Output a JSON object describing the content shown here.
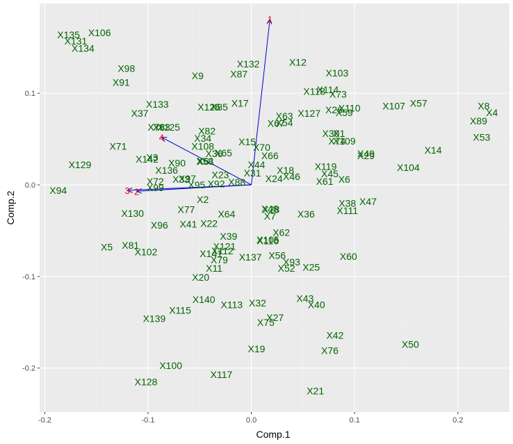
{
  "colors": {
    "panel": "#ebebeb",
    "grid_major": "#ffffff",
    "grid_minor": "#f4f4f4",
    "points": "#006400",
    "arrows": "#0000cd",
    "arrow_labels": "#ff0000",
    "tick_text": "#4d4d4d",
    "tick_mark": "#333333"
  },
  "chart_data": {
    "type": "scatter",
    "xlabel": "Comp.1",
    "ylabel": "Comp.2",
    "xlim": [
      -0.205,
      0.25
    ],
    "ylim": [
      -0.248,
      0.198
    ],
    "x_ticks": [
      {
        "value": -0.2,
        "label": "-0.2"
      },
      {
        "value": -0.1,
        "label": "-0.1"
      },
      {
        "value": 0.0,
        "label": "0.0"
      },
      {
        "value": 0.1,
        "label": "0.1"
      },
      {
        "value": 0.2,
        "label": "0.2"
      }
    ],
    "y_ticks": [
      {
        "value": 0.1,
        "label": "0.1"
      },
      {
        "value": 0.0,
        "label": "0.0"
      },
      {
        "value": -0.1,
        "label": "-0.1"
      },
      {
        "value": -0.2,
        "label": "-0.2"
      }
    ],
    "grid": true,
    "points": [
      {
        "label": "X135",
        "x": -0.177,
        "y": 0.164
      },
      {
        "label": "X106",
        "x": -0.147,
        "y": 0.166
      },
      {
        "label": "X131",
        "x": -0.17,
        "y": 0.157
      },
      {
        "label": "X134",
        "x": -0.163,
        "y": 0.149
      },
      {
        "label": "X98",
        "x": -0.121,
        "y": 0.127
      },
      {
        "label": "X91",
        "x": -0.126,
        "y": 0.112
      },
      {
        "label": "X9",
        "x": -0.052,
        "y": 0.119
      },
      {
        "label": "X87",
        "x": -0.012,
        "y": 0.121
      },
      {
        "label": "X132",
        "x": -0.003,
        "y": 0.132
      },
      {
        "label": "X12",
        "x": 0.045,
        "y": 0.134
      },
      {
        "label": "X103",
        "x": 0.083,
        "y": 0.122
      },
      {
        "label": "X118",
        "x": 0.061,
        "y": 0.102
      },
      {
        "label": "X114",
        "x": 0.074,
        "y": 0.104
      },
      {
        "label": "X73",
        "x": 0.084,
        "y": 0.099
      },
      {
        "label": "X133",
        "x": -0.091,
        "y": 0.088
      },
      {
        "label": "X17",
        "x": -0.011,
        "y": 0.089
      },
      {
        "label": "X126",
        "x": -0.041,
        "y": 0.085
      },
      {
        "label": "X85",
        "x": -0.031,
        "y": 0.085
      },
      {
        "label": "X37",
        "x": -0.108,
        "y": 0.078
      },
      {
        "label": "X127",
        "x": 0.056,
        "y": 0.078
      },
      {
        "label": "X26",
        "x": 0.08,
        "y": 0.082
      },
      {
        "label": "X59",
        "x": 0.09,
        "y": 0.079
      },
      {
        "label": "X110",
        "x": 0.095,
        "y": 0.084
      },
      {
        "label": "X107",
        "x": 0.138,
        "y": 0.086
      },
      {
        "label": "X57",
        "x": 0.162,
        "y": 0.089
      },
      {
        "label": "X8",
        "x": 0.225,
        "y": 0.086
      },
      {
        "label": "X4",
        "x": 0.233,
        "y": 0.079
      },
      {
        "label": "X89",
        "x": 0.22,
        "y": 0.07
      },
      {
        "label": "X53",
        "x": 0.223,
        "y": 0.052
      },
      {
        "label": "X63",
        "x": 0.032,
        "y": 0.075
      },
      {
        "label": "X67",
        "x": 0.024,
        "y": 0.067
      },
      {
        "label": "X54",
        "x": 0.032,
        "y": 0.068
      },
      {
        "label": "X78",
        "x": -0.092,
        "y": 0.063
      },
      {
        "label": "X83",
        "x": -0.087,
        "y": 0.063
      },
      {
        "label": "X125",
        "x": -0.08,
        "y": 0.063
      },
      {
        "label": "X82",
        "x": -0.043,
        "y": 0.059
      },
      {
        "label": "X34",
        "x": -0.047,
        "y": 0.051
      },
      {
        "label": "X30",
        "x": 0.077,
        "y": 0.056
      },
      {
        "label": "X1",
        "x": 0.085,
        "y": 0.056
      },
      {
        "label": "X74",
        "x": 0.083,
        "y": 0.048
      },
      {
        "label": "X109",
        "x": 0.09,
        "y": 0.048
      },
      {
        "label": "X71",
        "x": -0.129,
        "y": 0.042
      },
      {
        "label": "X108",
        "x": -0.047,
        "y": 0.042
      },
      {
        "label": "X15",
        "x": -0.004,
        "y": 0.047
      },
      {
        "label": "X70",
        "x": 0.01,
        "y": 0.041
      },
      {
        "label": "X14",
        "x": 0.176,
        "y": 0.038
      },
      {
        "label": "X36",
        "x": -0.036,
        "y": 0.034
      },
      {
        "label": "X65",
        "x": -0.027,
        "y": 0.035
      },
      {
        "label": "X66",
        "x": 0.018,
        "y": 0.032
      },
      {
        "label": "X49",
        "x": 0.111,
        "y": 0.034
      },
      {
        "label": "X29",
        "x": 0.111,
        "y": 0.032
      },
      {
        "label": "X142",
        "x": -0.101,
        "y": 0.028
      },
      {
        "label": "X3",
        "x": -0.096,
        "y": 0.03
      },
      {
        "label": "X129",
        "x": -0.166,
        "y": 0.022
      },
      {
        "label": "X90",
        "x": -0.072,
        "y": 0.024
      },
      {
        "label": "X58",
        "x": -0.045,
        "y": 0.026
      },
      {
        "label": "X61",
        "x": -0.044,
        "y": 0.026
      },
      {
        "label": "X44",
        "x": 0.005,
        "y": 0.022
      },
      {
        "label": "X104",
        "x": 0.152,
        "y": 0.019
      },
      {
        "label": "X119",
        "x": 0.072,
        "y": 0.02
      },
      {
        "label": "X136",
        "x": -0.082,
        "y": 0.016
      },
      {
        "label": "X23",
        "x": -0.03,
        "y": 0.011
      },
      {
        "label": "X31",
        "x": 0.001,
        "y": 0.013
      },
      {
        "label": "X18",
        "x": 0.033,
        "y": 0.016
      },
      {
        "label": "X45",
        "x": 0.076,
        "y": 0.012
      },
      {
        "label": "X72",
        "x": -0.093,
        "y": 0.004
      },
      {
        "label": "X97",
        "x": -0.062,
        "y": 0.007
      },
      {
        "label": "X33",
        "x": -0.068,
        "y": 0.006
      },
      {
        "label": "X88",
        "x": -0.014,
        "y": 0.003
      },
      {
        "label": "X46",
        "x": 0.039,
        "y": 0.009
      },
      {
        "label": "X24",
        "x": 0.022,
        "y": 0.007
      },
      {
        "label": "X6",
        "x": 0.09,
        "y": 0.006
      },
      {
        "label": "X61",
        "x": 0.071,
        "y": 0.004
      },
      {
        "label": "X99",
        "x": -0.093,
        "y": -0.003
      },
      {
        "label": "X95",
        "x": -0.053,
        "y": 0.0
      },
      {
        "label": "X92",
        "x": -0.034,
        "y": 0.001
      },
      {
        "label": "X94",
        "x": -0.187,
        "y": -0.006
      },
      {
        "label": "X2",
        "x": -0.047,
        "y": -0.016
      },
      {
        "label": "X38",
        "x": 0.093,
        "y": -0.02
      },
      {
        "label": "X47",
        "x": 0.113,
        "y": -0.018
      },
      {
        "label": "X111",
        "x": 0.093,
        "y": -0.028
      },
      {
        "label": "X130",
        "x": -0.115,
        "y": -0.031
      },
      {
        "label": "X77",
        "x": -0.063,
        "y": -0.027
      },
      {
        "label": "X48",
        "x": 0.018,
        "y": -0.026
      },
      {
        "label": "X28",
        "x": 0.019,
        "y": -0.027
      },
      {
        "label": "X7",
        "x": 0.018,
        "y": -0.034
      },
      {
        "label": "X64",
        "x": -0.024,
        "y": -0.032
      },
      {
        "label": "X36",
        "x": 0.053,
        "y": -0.032
      },
      {
        "label": "X96",
        "x": -0.089,
        "y": -0.044
      },
      {
        "label": "X41",
        "x": -0.061,
        "y": -0.043
      },
      {
        "label": "X22",
        "x": -0.041,
        "y": -0.042
      },
      {
        "label": "X62",
        "x": 0.029,
        "y": -0.052
      },
      {
        "label": "X39",
        "x": -0.022,
        "y": -0.056
      },
      {
        "label": "X105",
        "x": 0.016,
        "y": -0.06
      },
      {
        "label": "X116",
        "x": 0.016,
        "y": -0.061
      },
      {
        "label": "X5",
        "x": -0.14,
        "y": -0.068
      },
      {
        "label": "X81",
        "x": -0.117,
        "y": -0.066
      },
      {
        "label": "X102",
        "x": -0.102,
        "y": -0.073
      },
      {
        "label": "X121",
        "x": -0.026,
        "y": -0.067
      },
      {
        "label": "X112",
        "x": -0.028,
        "y": -0.072
      },
      {
        "label": "X141",
        "x": -0.039,
        "y": -0.075
      },
      {
        "label": "X137",
        "x": -0.001,
        "y": -0.079
      },
      {
        "label": "X56",
        "x": 0.025,
        "y": -0.077
      },
      {
        "label": "X60",
        "x": 0.094,
        "y": -0.078
      },
      {
        "label": "X79",
        "x": -0.031,
        "y": -0.082
      },
      {
        "label": "X93",
        "x": 0.039,
        "y": -0.084
      },
      {
        "label": "X52",
        "x": 0.034,
        "y": -0.091
      },
      {
        "label": "X25",
        "x": 0.058,
        "y": -0.09
      },
      {
        "label": "X11",
        "x": -0.036,
        "y": -0.091
      },
      {
        "label": "X20",
        "x": -0.049,
        "y": -0.101
      },
      {
        "label": "X140",
        "x": -0.046,
        "y": -0.125
      },
      {
        "label": "X43",
        "x": 0.052,
        "y": -0.124
      },
      {
        "label": "X113",
        "x": -0.019,
        "y": -0.131
      },
      {
        "label": "X32",
        "x": 0.006,
        "y": -0.129
      },
      {
        "label": "X40",
        "x": 0.063,
        "y": -0.131
      },
      {
        "label": "X115",
        "x": -0.069,
        "y": -0.137
      },
      {
        "label": "X139",
        "x": -0.094,
        "y": -0.146
      },
      {
        "label": "X27",
        "x": 0.023,
        "y": -0.145
      },
      {
        "label": "X75",
        "x": 0.014,
        "y": -0.15
      },
      {
        "label": "X42",
        "x": 0.081,
        "y": -0.164
      },
      {
        "label": "X50",
        "x": 0.154,
        "y": -0.174
      },
      {
        "label": "X76",
        "x": 0.076,
        "y": -0.181
      },
      {
        "label": "X19",
        "x": 0.005,
        "y": -0.179
      },
      {
        "label": "X100",
        "x": -0.078,
        "y": -0.197
      },
      {
        "label": "X117",
        "x": -0.029,
        "y": -0.207
      },
      {
        "label": "X128",
        "x": -0.102,
        "y": -0.215
      },
      {
        "label": "X21",
        "x": 0.062,
        "y": -0.225
      }
    ],
    "arrows": [
      {
        "label": "1",
        "x": 0.018,
        "y": 0.181
      },
      {
        "label": "4",
        "x": -0.087,
        "y": 0.052
      },
      {
        "label": "3",
        "x": -0.12,
        "y": -0.006
      },
      {
        "label": "2",
        "x": -0.111,
        "y": -0.007
      }
    ]
  }
}
